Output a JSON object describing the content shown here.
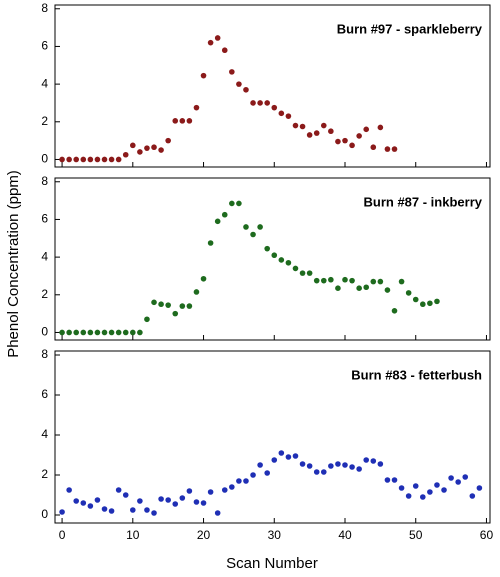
{
  "chart_data": [
    {
      "type": "scatter",
      "title": "Burn #97 - sparkleberry",
      "color": "#8b1a1a",
      "x": [
        0,
        1,
        2,
        3,
        4,
        5,
        6,
        7,
        8,
        9,
        10,
        11,
        12,
        13,
        14,
        15,
        16,
        17,
        18,
        19,
        20,
        21,
        22,
        23,
        24,
        25,
        26,
        27,
        28,
        29,
        30,
        31,
        32,
        33,
        34,
        35,
        36,
        37,
        38,
        39,
        40,
        41,
        42,
        43,
        44,
        45,
        46,
        47
      ],
      "values": [
        0,
        0,
        0,
        0,
        0,
        0,
        0,
        0,
        0,
        0.25,
        0.75,
        0.4,
        0.6,
        0.65,
        0.5,
        1.0,
        2.05,
        2.05,
        2.05,
        2.75,
        4.45,
        6.2,
        6.45,
        5.8,
        4.65,
        4.0,
        3.7,
        3.0,
        3.0,
        3.0,
        2.75,
        2.45,
        2.3,
        1.8,
        1.75,
        1.3,
        1.4,
        1.8,
        1.5,
        0.95,
        1.0,
        0.75,
        1.25,
        1.6,
        0.65,
        1.7,
        0.55,
        0.55
      ],
      "ylim": [
        -0.4,
        8.2
      ],
      "yticks": [
        0,
        2,
        4,
        6,
        8
      ]
    },
    {
      "type": "scatter",
      "title": "Burn #87 - inkberry",
      "color": "#1e6b1e",
      "ylabel": "Phenol Concentration (ppm)",
      "x": [
        0,
        1,
        2,
        3,
        4,
        5,
        6,
        7,
        8,
        9,
        10,
        11,
        12,
        13,
        14,
        15,
        16,
        17,
        18,
        19,
        20,
        21,
        22,
        23,
        24,
        25,
        26,
        27,
        28,
        29,
        30,
        31,
        32,
        33,
        34,
        35,
        36,
        37,
        38,
        39,
        40,
        41,
        42,
        43,
        44,
        45,
        46,
        47,
        48,
        49,
        50,
        51,
        52,
        53
      ],
      "values": [
        0,
        0,
        0,
        0,
        0,
        0,
        0,
        0,
        0,
        0,
        0,
        0,
        0.7,
        1.6,
        1.5,
        1.45,
        1.0,
        1.4,
        1.4,
        2.15,
        2.85,
        4.75,
        5.9,
        6.25,
        6.85,
        6.85,
        5.6,
        5.2,
        5.6,
        4.45,
        4.1,
        3.85,
        3.7,
        3.4,
        3.15,
        3.15,
        2.75,
        2.75,
        2.8,
        2.35,
        2.8,
        2.75,
        2.35,
        2.4,
        2.7,
        2.7,
        2.25,
        1.15,
        2.7,
        2.1,
        1.75,
        1.5,
        1.55,
        1.65
      ],
      "ylim": [
        -0.4,
        8.2
      ],
      "yticks": [
        0,
        2,
        4,
        6,
        8
      ]
    },
    {
      "type": "scatter",
      "title": "Burn #83 - fetterbush",
      "color": "#1f2fb5",
      "xlabel": "Scan Number",
      "x": [
        0,
        1,
        2,
        3,
        4,
        5,
        6,
        7,
        8,
        9,
        10,
        11,
        12,
        13,
        14,
        15,
        16,
        17,
        18,
        19,
        20,
        21,
        22,
        23,
        24,
        25,
        26,
        27,
        28,
        29,
        30,
        31,
        32,
        33,
        34,
        35,
        36,
        37,
        38,
        39,
        40,
        41,
        42,
        43,
        44,
        45,
        46,
        47,
        48,
        49,
        50,
        51,
        52,
        53,
        54,
        55,
        56,
        57,
        58,
        59
      ],
      "values": [
        0.15,
        1.25,
        0.7,
        0.6,
        0.45,
        0.75,
        0.3,
        0.2,
        1.25,
        1.0,
        0.25,
        0.7,
        0.25,
        0.1,
        0.8,
        0.75,
        0.55,
        0.85,
        1.2,
        0.65,
        0.6,
        1.15,
        0.1,
        1.25,
        1.4,
        1.7,
        1.7,
        2.0,
        2.5,
        2.1,
        2.75,
        3.1,
        2.9,
        2.95,
        2.55,
        2.45,
        2.15,
        2.15,
        2.45,
        2.55,
        2.5,
        2.4,
        2.3,
        2.75,
        2.7,
        2.55,
        1.75,
        1.75,
        1.35,
        0.95,
        1.45,
        0.9,
        1.15,
        1.5,
        1.25,
        1.85,
        1.65,
        1.9,
        0.95,
        1.35
      ],
      "ylim": [
        -0.4,
        8.2
      ],
      "yticks": [
        0,
        2,
        4,
        6,
        8
      ],
      "xlim": [
        -1,
        60.5
      ],
      "xticks": [
        0,
        10,
        20,
        30,
        40,
        50,
        60
      ]
    }
  ]
}
